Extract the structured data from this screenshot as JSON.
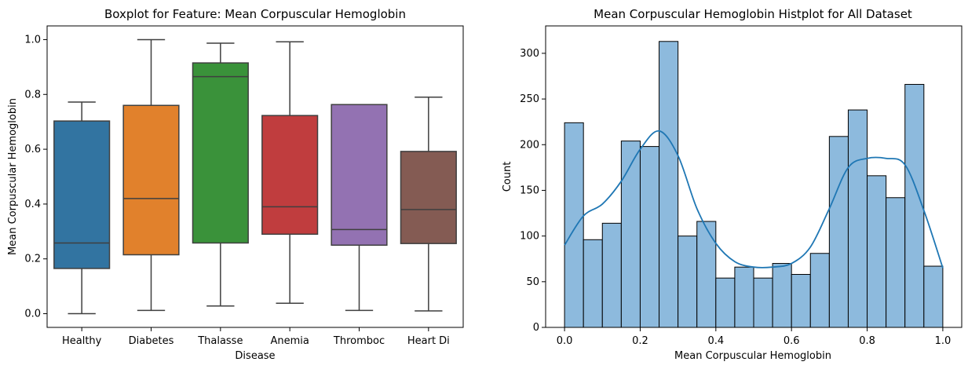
{
  "chart_data": [
    {
      "type": "box",
      "title": "Boxplot for Feature: Mean Corpuscular Hemoglobin",
      "xlabel": "Disease",
      "ylabel": "Mean Corpuscular Hemoglobin",
      "ylim": [
        -0.05,
        1.05
      ],
      "yticks": [
        "0.0",
        "0.2",
        "0.4",
        "0.6",
        "0.8",
        "1.0"
      ],
      "categories": [
        "Healthy",
        "Diabetes",
        "Thalasse",
        "Anemia",
        "Thromboc",
        "Heart Di"
      ],
      "boxes": [
        {
          "whisker_low": 0.0,
          "q1": 0.165,
          "median": 0.258,
          "q3": 0.703,
          "whisker_high": 0.772
        },
        {
          "whisker_low": 0.012,
          "q1": 0.215,
          "median": 0.42,
          "q3": 0.76,
          "whisker_high": 1.0
        },
        {
          "whisker_low": 0.028,
          "q1": 0.258,
          "median": 0.865,
          "q3": 0.915,
          "whisker_high": 0.987
        },
        {
          "whisker_low": 0.038,
          "q1": 0.29,
          "median": 0.39,
          "q3": 0.723,
          "whisker_high": 0.992
        },
        {
          "whisker_low": 0.012,
          "q1": 0.25,
          "median": 0.307,
          "q3": 0.763,
          "whisker_high": 0.763
        },
        {
          "whisker_low": 0.01,
          "q1": 0.256,
          "median": 0.38,
          "q3": 0.592,
          "whisker_high": 0.79
        }
      ],
      "colors": [
        "#3274a1",
        "#e1812c",
        "#3a923a",
        "#c03d3e",
        "#9372b2",
        "#845b53"
      ]
    },
    {
      "type": "histogram",
      "title": "Mean Corpuscular Hemoglobin Histplot for All Dataset",
      "xlabel": "Mean Corpuscular Hemoglobin",
      "ylabel": "Count",
      "xlim": [
        -0.05,
        1.05
      ],
      "ylim": [
        0,
        330
      ],
      "xticks": [
        "0.0",
        "0.2",
        "0.4",
        "0.6",
        "0.8",
        "1.0"
      ],
      "yticks": [
        "0",
        "50",
        "100",
        "150",
        "200",
        "250",
        "300"
      ],
      "bin_edges": [
        0.0,
        0.05,
        0.1,
        0.15,
        0.2,
        0.25,
        0.3,
        0.35,
        0.4,
        0.45,
        0.5,
        0.55,
        0.6,
        0.65,
        0.7,
        0.75,
        0.8,
        0.85,
        0.9,
        0.95,
        1.0
      ],
      "counts": [
        224,
        96,
        114,
        204,
        198,
        313,
        100,
        116,
        54,
        66,
        54,
        70,
        58,
        81,
        209,
        238,
        166,
        142,
        266,
        67
      ],
      "kde": {
        "x": [
          0.0,
          0.05,
          0.1,
          0.15,
          0.2,
          0.25,
          0.3,
          0.35,
          0.4,
          0.45,
          0.5,
          0.55,
          0.6,
          0.65,
          0.7,
          0.75,
          0.8,
          0.85,
          0.9,
          0.95,
          1.0
        ],
        "y": [
          90,
          122,
          135,
          160,
          195,
          215,
          188,
          130,
          92,
          72,
          66,
          66,
          70,
          88,
          130,
          175,
          185,
          185,
          178,
          128,
          65
        ]
      },
      "bar_color": "#8dbadd",
      "line_color": "#1f77b4"
    }
  ]
}
